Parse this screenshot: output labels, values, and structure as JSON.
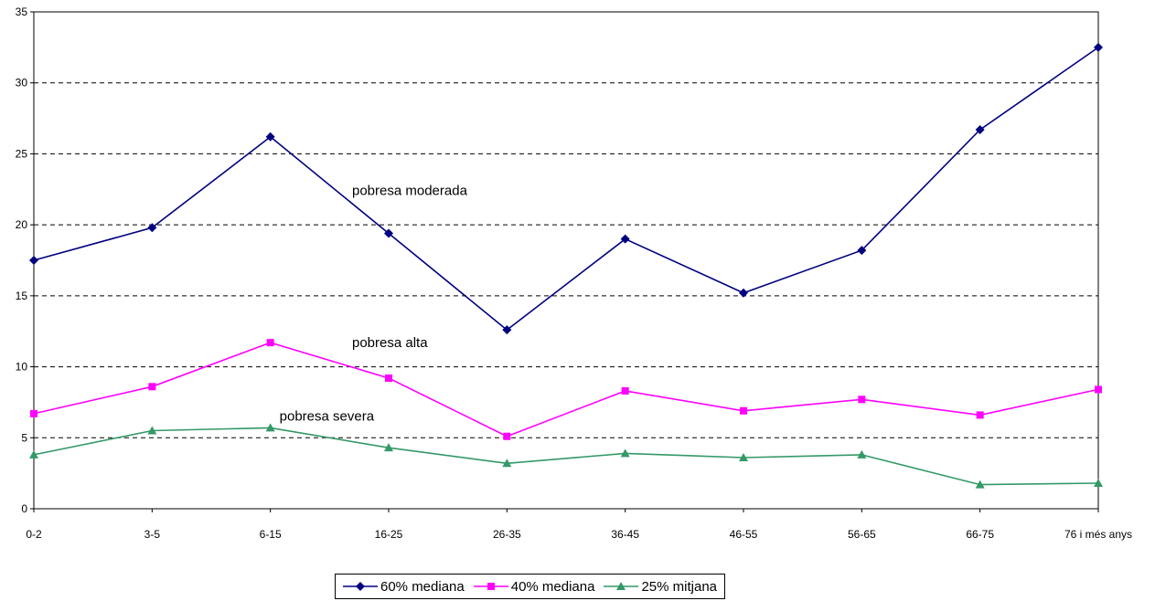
{
  "chart_data": {
    "type": "line",
    "categories": [
      "0-2",
      "3-5",
      "6-15",
      "16-25",
      "26-35",
      "36-45",
      "46-55",
      "56-65",
      "66-75",
      "76 i més anys"
    ],
    "ylim": [
      0,
      35
    ],
    "yticks": [
      0,
      5,
      10,
      15,
      20,
      25,
      30,
      35
    ],
    "grid": "horizontal-dashed",
    "legend_position": "bottom",
    "series": [
      {
        "name": "60% mediana",
        "color": "#000080",
        "marker": "diamond",
        "values": [
          17.5,
          19.8,
          26.2,
          19.4,
          12.6,
          19.0,
          15.2,
          18.2,
          26.7,
          32.5
        ]
      },
      {
        "name": "40% mediana",
        "color": "#FF00FF",
        "marker": "square",
        "values": [
          6.7,
          8.6,
          11.7,
          9.2,
          5.1,
          8.3,
          6.9,
          7.7,
          6.6,
          8.4
        ]
      },
      {
        "name": "25% mitjana",
        "color": "#339966",
        "marker": "triangle",
        "values": [
          3.8,
          5.5,
          5.7,
          4.3,
          3.2,
          3.9,
          3.6,
          3.8,
          1.7,
          1.8
        ]
      }
    ],
    "annotations": [
      {
        "text": "pobresa moderada",
        "x": "16-25",
        "y": 22.1
      },
      {
        "text": "pobresa alta",
        "x": "16-25",
        "y": 11.4
      },
      {
        "text": "pobresa severa",
        "x": "6-15",
        "y": 6.2
      }
    ]
  }
}
